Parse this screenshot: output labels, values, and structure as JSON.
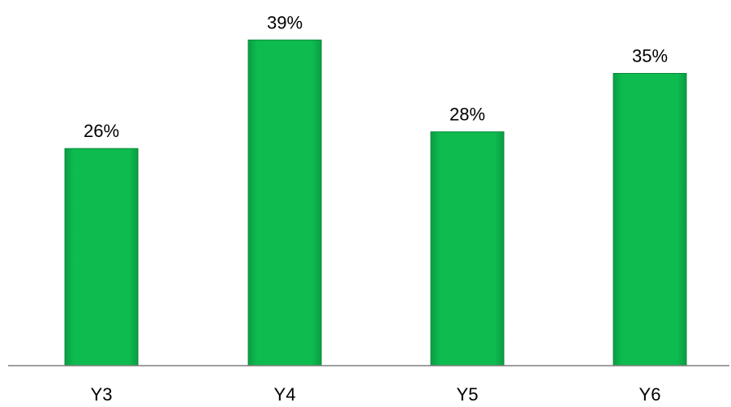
{
  "chart_data": {
    "type": "bar",
    "categories": [
      "Y3",
      "Y4",
      "Y5",
      "Y6"
    ],
    "values": [
      26,
      39,
      28,
      35
    ],
    "data_labels": [
      "26%",
      "39%",
      "28%",
      "35%"
    ],
    "ylim": [
      0,
      45
    ],
    "grid": false,
    "legend": "none",
    "colors": {
      "bar_fill": "#0dbb4f",
      "bar_edge": "#0a8a3a",
      "axis": "#7f7f7f"
    }
  }
}
